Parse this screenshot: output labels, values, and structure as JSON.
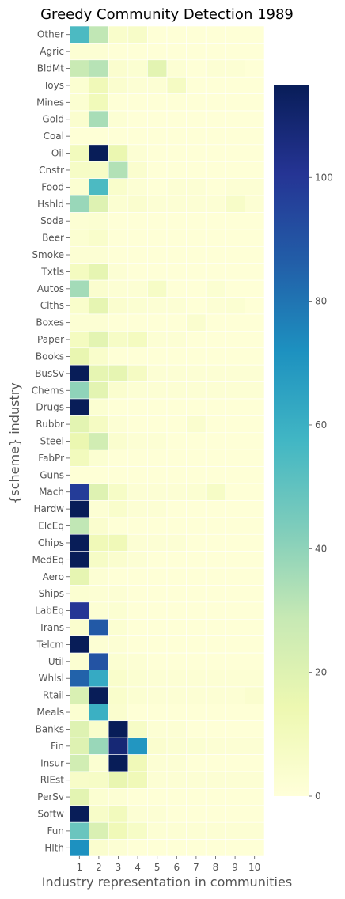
{
  "chart_data": {
    "type": "heatmap",
    "title": "Greedy Community Detection 1989",
    "xlabel": "Industry representation in communities",
    "ylabel": "{scheme} industry",
    "x_categories": [
      "1",
      "2",
      "3",
      "4",
      "5",
      "6",
      "7",
      "8",
      "9",
      "10"
    ],
    "y_categories": [
      "Other",
      "Agric",
      "BldMt",
      "Toys",
      "Mines",
      "Gold",
      "Coal",
      "Oil",
      "Cnstr",
      "Food",
      "Hshld",
      "Soda",
      "Beer",
      "Smoke",
      "Txtls",
      "Autos",
      "Clths",
      "Boxes",
      "Paper",
      "Books",
      "BusSv",
      "Chems",
      "Drugs",
      "Rubbr",
      "Steel",
      "FabPr",
      "Guns",
      "Mach",
      "Hardw",
      "ElcEq",
      "Chips",
      "MedEq",
      "Aero",
      "Ships",
      "LabEq",
      "Trans",
      "Telcm",
      "Util",
      "Whlsl",
      "Rtail",
      "Meals",
      "Banks",
      "Fin",
      "Insur",
      "RlEst",
      "PerSv",
      "Softw",
      "Fun",
      "Hlth"
    ],
    "values": [
      [
        55,
        30,
        5,
        6,
        1,
        1,
        1,
        1,
        1,
        1
      ],
      [
        2,
        2,
        1,
        1,
        1,
        1,
        1,
        1,
        1,
        1
      ],
      [
        28,
        32,
        4,
        3,
        18,
        2,
        1,
        2,
        2,
        1
      ],
      [
        3,
        12,
        4,
        2,
        2,
        8,
        1,
        1,
        1,
        1
      ],
      [
        3,
        11,
        1,
        1,
        1,
        1,
        1,
        1,
        1,
        1
      ],
      [
        4,
        35,
        2,
        1,
        1,
        1,
        1,
        1,
        1,
        1
      ],
      [
        1,
        1,
        1,
        1,
        1,
        1,
        1,
        1,
        1,
        1
      ],
      [
        10,
        115,
        15,
        2,
        1,
        1,
        1,
        1,
        1,
        1
      ],
      [
        7,
        7,
        33,
        4,
        1,
        1,
        1,
        1,
        1,
        1
      ],
      [
        3,
        55,
        5,
        2,
        1,
        2,
        2,
        1,
        2,
        2
      ],
      [
        38,
        20,
        3,
        4,
        2,
        2,
        2,
        2,
        6,
        2
      ],
      [
        2,
        3,
        1,
        1,
        1,
        1,
        1,
        1,
        1,
        1
      ],
      [
        3,
        5,
        1,
        1,
        1,
        1,
        1,
        1,
        1,
        1
      ],
      [
        2,
        2,
        1,
        1,
        1,
        1,
        1,
        1,
        1,
        1
      ],
      [
        9,
        17,
        2,
        1,
        1,
        1,
        1,
        1,
        1,
        1
      ],
      [
        36,
        4,
        2,
        2,
        7,
        1,
        1,
        3,
        1,
        1
      ],
      [
        5,
        17,
        4,
        3,
        2,
        2,
        1,
        2,
        3,
        1
      ],
      [
        2,
        2,
        1,
        1,
        1,
        1,
        4,
        1,
        1,
        1
      ],
      [
        9,
        18,
        7,
        9,
        2,
        2,
        1,
        1,
        1,
        1
      ],
      [
        16,
        5,
        1,
        1,
        1,
        1,
        1,
        1,
        1,
        1
      ],
      [
        115,
        17,
        17,
        8,
        2,
        2,
        2,
        2,
        2,
        2
      ],
      [
        40,
        18,
        4,
        2,
        2,
        2,
        2,
        2,
        2,
        2
      ],
      [
        115,
        3,
        1,
        1,
        1,
        1,
        1,
        1,
        1,
        1
      ],
      [
        18,
        8,
        2,
        1,
        1,
        1,
        4,
        1,
        1,
        1
      ],
      [
        15,
        25,
        4,
        2,
        2,
        1,
        1,
        1,
        1,
        1
      ],
      [
        10,
        3,
        1,
        1,
        1,
        1,
        1,
        1,
        1,
        1
      ],
      [
        1,
        1,
        1,
        1,
        1,
        1,
        1,
        1,
        1,
        1
      ],
      [
        98,
        20,
        7,
        2,
        2,
        2,
        3,
        7,
        1,
        1
      ],
      [
        115,
        2,
        5,
        2,
        2,
        1,
        1,
        1,
        1,
        1
      ],
      [
        30,
        4,
        1,
        1,
        1,
        1,
        1,
        1,
        1,
        1
      ],
      [
        115,
        12,
        12,
        2,
        2,
        2,
        1,
        1,
        1,
        1
      ],
      [
        115,
        7,
        4,
        2,
        1,
        1,
        1,
        1,
        1,
        1
      ],
      [
        17,
        2,
        1,
        1,
        1,
        1,
        1,
        1,
        1,
        1
      ],
      [
        3,
        2,
        2,
        1,
        1,
        1,
        1,
        1,
        1,
        1
      ],
      [
        100,
        2,
        3,
        1,
        1,
        1,
        1,
        1,
        1,
        1
      ],
      [
        4,
        88,
        3,
        1,
        1,
        1,
        1,
        1,
        1,
        1
      ],
      [
        115,
        2,
        2,
        1,
        1,
        1,
        1,
        1,
        1,
        1
      ],
      [
        3,
        90,
        3,
        2,
        1,
        1,
        1,
        1,
        1,
        1
      ],
      [
        85,
        62,
        5,
        3,
        2,
        2,
        2,
        2,
        2,
        2
      ],
      [
        22,
        115,
        5,
        3,
        2,
        2,
        2,
        2,
        2,
        4
      ],
      [
        3,
        60,
        4,
        1,
        1,
        1,
        1,
        1,
        1,
        1
      ],
      [
        20,
        5,
        115,
        7,
        2,
        2,
        1,
        1,
        1,
        1
      ],
      [
        20,
        38,
        108,
        70,
        4,
        3,
        3,
        2,
        2,
        2
      ],
      [
        25,
        3,
        115,
        12,
        2,
        2,
        1,
        1,
        1,
        1
      ],
      [
        6,
        7,
        16,
        12,
        2,
        2,
        2,
        2,
        2,
        2
      ],
      [
        18,
        3,
        2,
        1,
        1,
        1,
        1,
        1,
        1,
        1
      ],
      [
        115,
        6,
        10,
        2,
        2,
        1,
        1,
        1,
        1,
        1
      ],
      [
        48,
        22,
        12,
        7,
        2,
        2,
        2,
        2,
        2,
        2
      ],
      [
        72,
        4,
        2,
        1,
        1,
        1,
        1,
        1,
        1,
        1
      ]
    ],
    "vmin": 0,
    "vmax": 115,
    "colormap": "YlGnBu",
    "colorbar_ticks": [
      0,
      20,
      40,
      60,
      80,
      100
    ]
  }
}
